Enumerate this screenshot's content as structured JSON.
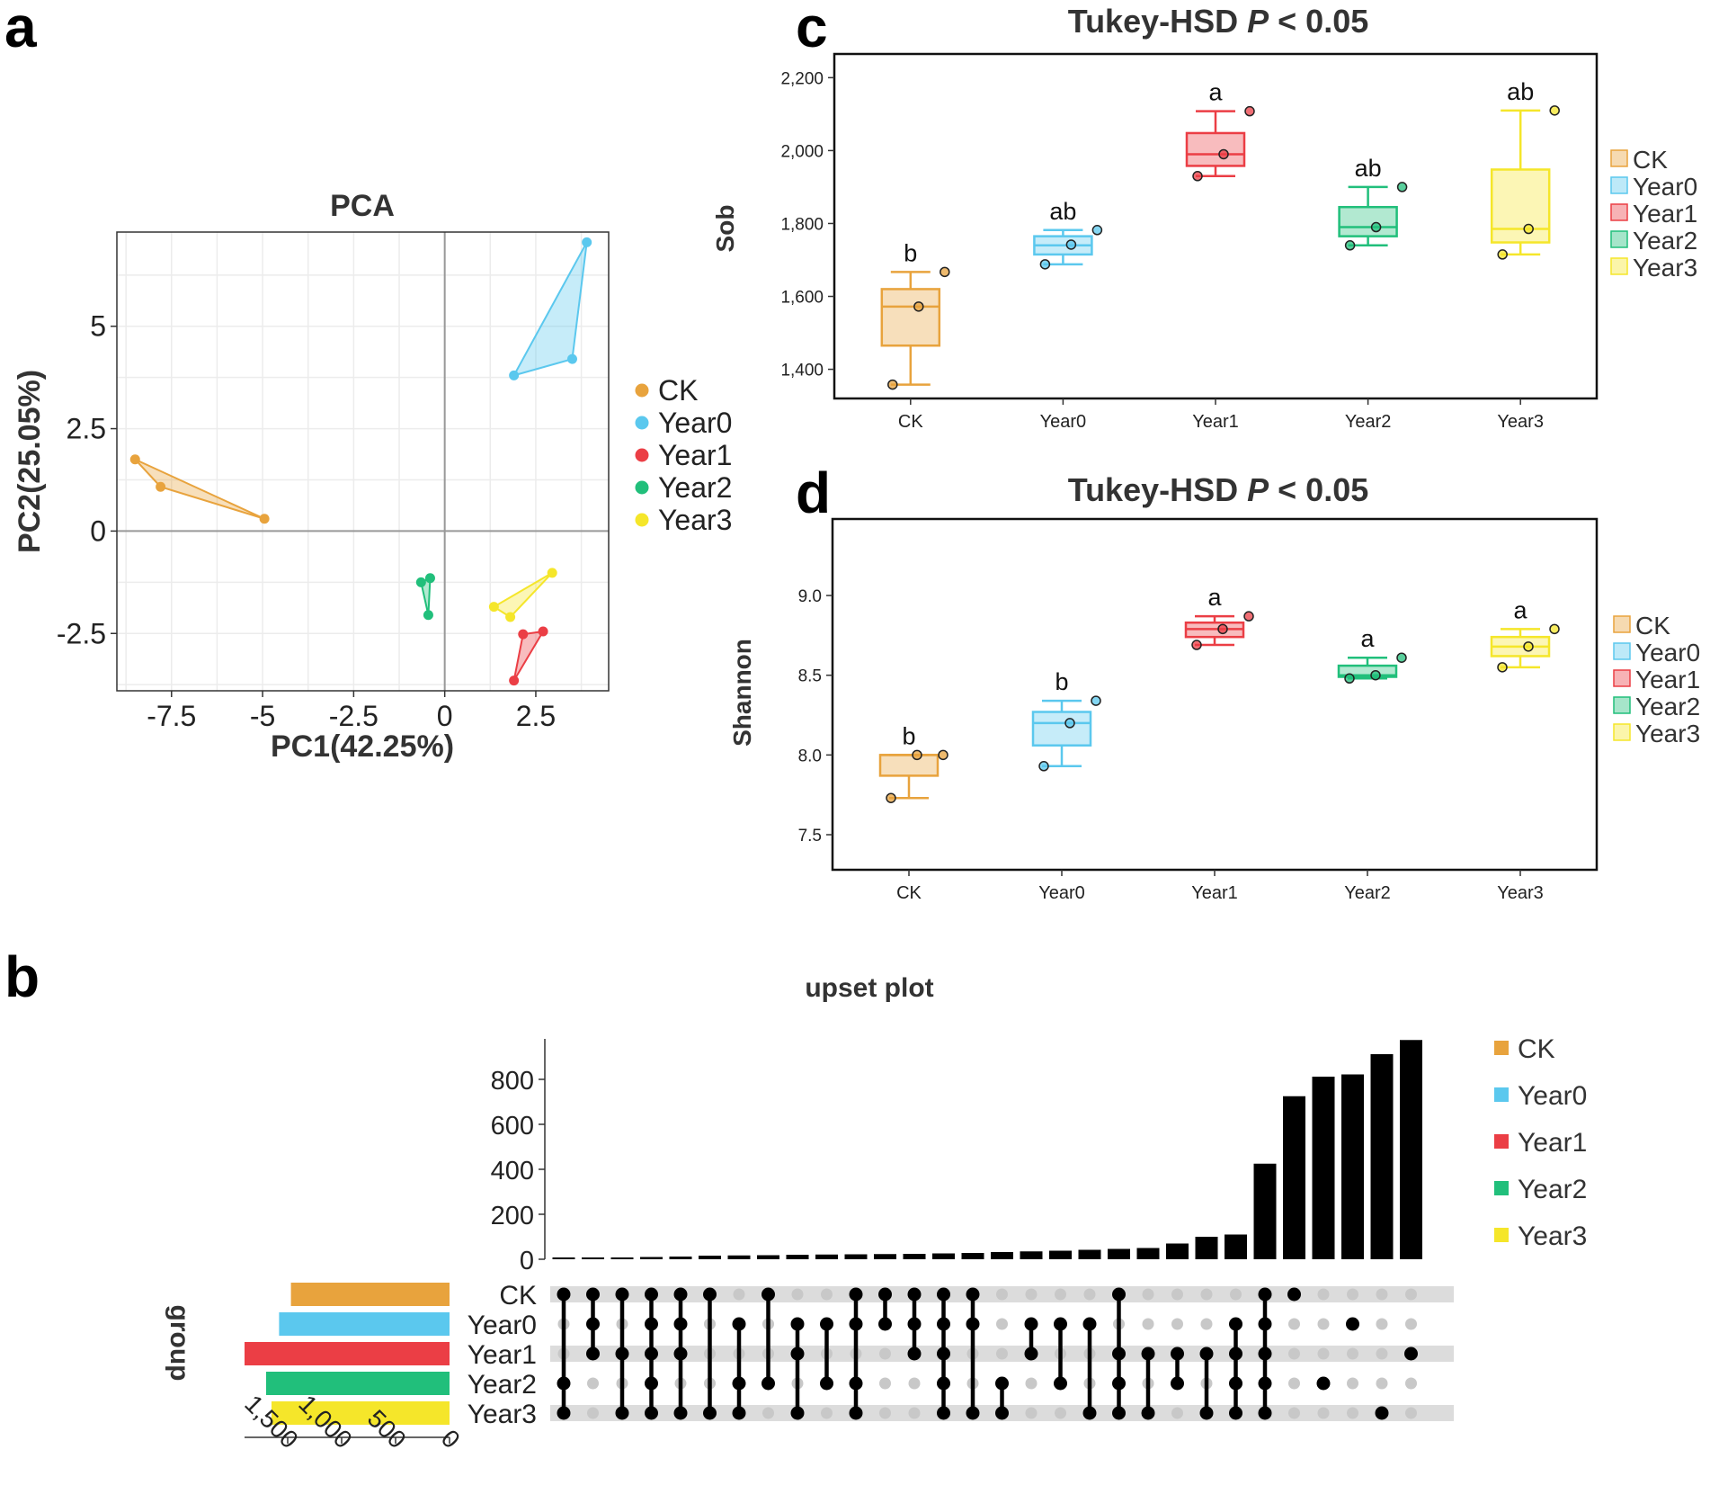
{
  "panels": {
    "a": "a",
    "b": "b",
    "c": "c",
    "d": "d"
  },
  "legend": [
    {
      "name": "CK",
      "color": "#E8A33D"
    },
    {
      "name": "Year0",
      "color": "#5BC8EE"
    },
    {
      "name": "Year1",
      "color": "#EB3E45"
    },
    {
      "name": "Year2",
      "color": "#21BF7B"
    },
    {
      "name": "Year3",
      "color": "#F5E62A"
    }
  ],
  "chart_data": [
    {
      "id": "pca",
      "type": "scatter",
      "title": "PCA",
      "xlabel": "PC1(42.25%)",
      "ylabel": "PC2(25.05%)",
      "xlim": [
        -9,
        4.5
      ],
      "ylim": [
        -3.9,
        7.3
      ],
      "xticks": [
        -7.5,
        -5,
        -2.5,
        0,
        2.5
      ],
      "xtick_labels": [
        "-7.5",
        "-5",
        "-2.5",
        "0",
        "2.5"
      ],
      "yticks": [
        -2.5,
        0,
        2.5,
        5
      ],
      "ytick_labels": [
        "-2.5",
        "0",
        "2.5",
        "5"
      ],
      "series": [
        {
          "name": "CK",
          "points": [
            [
              -8.5,
              1.75
            ],
            [
              -7.8,
              1.08
            ],
            [
              -4.95,
              0.3
            ]
          ]
        },
        {
          "name": "Year0",
          "points": [
            [
              3.9,
              7.05
            ],
            [
              3.5,
              4.2
            ],
            [
              1.9,
              3.8
            ]
          ]
        },
        {
          "name": "Year1",
          "points": [
            [
              2.15,
              -2.52
            ],
            [
              2.7,
              -2.45
            ],
            [
              1.9,
              -3.65
            ]
          ]
        },
        {
          "name": "Year2",
          "points": [
            [
              -0.65,
              -1.25
            ],
            [
              -0.4,
              -1.15
            ],
            [
              -0.45,
              -2.05
            ]
          ]
        },
        {
          "name": "Year3",
          "points": [
            [
              2.95,
              -1.02
            ],
            [
              1.35,
              -1.85
            ],
            [
              1.8,
              -2.1
            ]
          ]
        }
      ]
    },
    {
      "id": "sob",
      "type": "box",
      "title": "Tukey-HSD",
      "title_p": "P",
      "title_rest": " < 0.05",
      "ylabel": "Sob",
      "ylim": [
        1320,
        2265
      ],
      "yticks": [
        1400,
        1600,
        1800,
        2000,
        2200
      ],
      "ytick_labels": [
        "1,400",
        "1,600",
        "1,800",
        "2,000",
        "2,200"
      ],
      "categories": [
        "CK",
        "Year0",
        "Year1",
        "Year2",
        "Year3"
      ],
      "boxes": [
        {
          "q1": 1465,
          "median": 1572,
          "q3": 1620,
          "whislo": 1358,
          "whishi": 1667,
          "points": [
            1358,
            1572,
            1667
          ],
          "letter": "b"
        },
        {
          "q1": 1715,
          "median": 1740,
          "q3": 1765,
          "whislo": 1688,
          "whishi": 1782,
          "points": [
            1688,
            1742,
            1782
          ],
          "letter": "ab"
        },
        {
          "q1": 1958,
          "median": 1990,
          "q3": 2048,
          "whislo": 1930,
          "whishi": 2108,
          "points": [
            1930,
            1990,
            2108
          ],
          "letter": "a"
        },
        {
          "q1": 1765,
          "median": 1790,
          "q3": 1845,
          "whislo": 1740,
          "whishi": 1900,
          "points": [
            1740,
            1790,
            1900
          ],
          "letter": "ab"
        },
        {
          "q1": 1748,
          "median": 1785,
          "q3": 1948,
          "whislo": 1715,
          "whishi": 2110,
          "points": [
            1715,
            1785,
            2110
          ],
          "letter": "ab"
        }
      ]
    },
    {
      "id": "shannon",
      "type": "box",
      "title": "Tukey-HSD",
      "title_p": "P",
      "title_rest": " < 0.05",
      "ylabel": "Shannon",
      "ylim": [
        7.28,
        9.48
      ],
      "yticks": [
        7.5,
        8.0,
        8.5,
        9.0
      ],
      "ytick_labels": [
        "7.5",
        "8.0",
        "8.5",
        "9.0"
      ],
      "categories": [
        "CK",
        "Year0",
        "Year1",
        "Year2",
        "Year3"
      ],
      "boxes": [
        {
          "q1": 7.87,
          "median": 8.0,
          "q3": 8.0,
          "whislo": 7.73,
          "whishi": 8.0,
          "points": [
            7.73,
            8.0,
            8.0
          ],
          "letter": "b"
        },
        {
          "q1": 8.06,
          "median": 8.2,
          "q3": 8.27,
          "whislo": 7.93,
          "whishi": 8.34,
          "points": [
            7.93,
            8.2,
            8.34
          ],
          "letter": "b"
        },
        {
          "q1": 8.74,
          "median": 8.79,
          "q3": 8.83,
          "whislo": 8.69,
          "whishi": 8.87,
          "points": [
            8.69,
            8.79,
            8.87
          ],
          "letter": "a"
        },
        {
          "q1": 8.49,
          "median": 8.5,
          "q3": 8.56,
          "whislo": 8.48,
          "whishi": 8.61,
          "points": [
            8.48,
            8.5,
            8.61
          ],
          "letter": "a"
        },
        {
          "q1": 8.62,
          "median": 8.68,
          "q3": 8.74,
          "whislo": 8.55,
          "whishi": 8.79,
          "points": [
            8.55,
            8.68,
            8.79
          ],
          "letter": "a"
        }
      ]
    },
    {
      "id": "upset",
      "type": "upset",
      "title": "upset plot",
      "set_axis_label": "group",
      "sets": [
        "CK",
        "Year0",
        "Year1",
        "Year2",
        "Year3"
      ],
      "set_sizes": [
        1470,
        1580,
        1900,
        1700,
        1650
      ],
      "set_xlim": [
        0,
        1900
      ],
      "set_ticks": [
        0,
        500,
        1000,
        1500
      ],
      "set_tick_labels": [
        "0",
        "500",
        "1,000",
        "1,500"
      ],
      "ylim": [
        0,
        980
      ],
      "yticks": [
        0,
        200,
        400,
        600,
        800
      ],
      "ytick_labels": [
        "0",
        "200",
        "400",
        "600",
        "800"
      ],
      "intersections": [
        {
          "members": [
            0,
            3,
            4
          ],
          "size": 4
        },
        {
          "members": [
            0,
            1,
            2
          ],
          "size": 6
        },
        {
          "members": [
            0,
            2,
            4
          ],
          "size": 8
        },
        {
          "members": [
            0,
            1,
            2,
            3,
            4
          ],
          "size": 10
        },
        {
          "members": [
            0,
            1,
            2,
            4
          ],
          "size": 12
        },
        {
          "members": [
            0,
            4
          ],
          "size": 16
        },
        {
          "members": [
            1,
            3,
            4
          ],
          "size": 17
        },
        {
          "members": [
            0,
            3
          ],
          "size": 18
        },
        {
          "members": [
            1,
            2,
            4
          ],
          "size": 20
        },
        {
          "members": [
            1,
            3
          ],
          "size": 21
        },
        {
          "members": [
            0,
            1,
            3,
            4
          ],
          "size": 22
        },
        {
          "members": [
            0,
            1
          ],
          "size": 23
        },
        {
          "members": [
            0,
            1,
            2
          ],
          "size": 24
        },
        {
          "members": [
            0,
            1,
            2,
            3,
            4
          ],
          "size": 26
        },
        {
          "members": [
            0,
            1,
            4
          ],
          "size": 28
        },
        {
          "members": [
            3,
            4
          ],
          "size": 32
        },
        {
          "members": [
            1,
            2
          ],
          "size": 35
        },
        {
          "members": [
            1,
            3
          ],
          "size": 38
        },
        {
          "members": [
            1,
            4
          ],
          "size": 42
        },
        {
          "members": [
            0,
            2,
            3,
            4
          ],
          "size": 46
        },
        {
          "members": [
            2,
            4
          ],
          "size": 50
        },
        {
          "members": [
            2,
            3
          ],
          "size": 70
        },
        {
          "members": [
            2,
            4
          ],
          "size": 100
        },
        {
          "members": [
            1,
            2,
            3,
            4
          ],
          "size": 110
        },
        {
          "members": [
            0,
            1,
            2,
            3,
            4
          ],
          "size": 425
        },
        {
          "members": [
            0
          ],
          "size": 725
        },
        {
          "members": [
            3
          ],
          "size": 812
        },
        {
          "members": [
            1
          ],
          "size": 822
        },
        {
          "members": [
            4
          ],
          "size": 912
        },
        {
          "members": [
            2
          ],
          "size": 975
        }
      ]
    }
  ]
}
